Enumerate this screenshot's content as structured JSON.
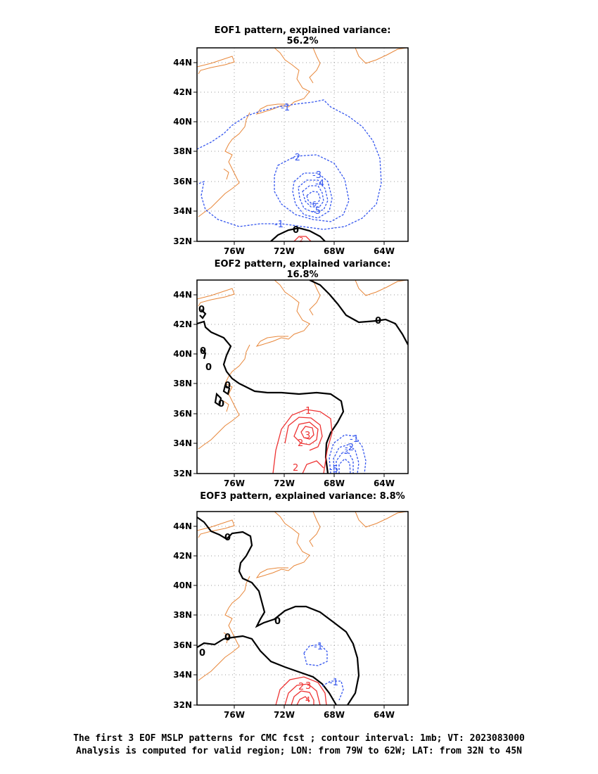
{
  "panels": [
    {
      "title": "EOF1 pattern, explained variance: 56.2%"
    },
    {
      "title": "EOF2 pattern, explained variance: 16.8%"
    },
    {
      "title": "EOF3 pattern, explained variance: 8.8%"
    }
  ],
  "axes": {
    "lat_ticks": [
      "32N",
      "34N",
      "36N",
      "38N",
      "40N",
      "42N",
      "44N"
    ],
    "lon_ticks": [
      "76W",
      "72W",
      "68W",
      "64W"
    ]
  },
  "colors": {
    "coast": "#e8873a",
    "negative": "#3355ee",
    "positive": "#ee3333",
    "zero": "#000000",
    "grid": "#999999"
  },
  "contour_labels": {
    "eof1": [
      "-1",
      "-1",
      "-2",
      "-3",
      "-4",
      "-5",
      "-6",
      "0",
      "2"
    ],
    "eof2": [
      "0",
      "0",
      "0",
      "0",
      "0",
      "0",
      "1",
      "3",
      "2",
      "2",
      "-1",
      "-2",
      "-3",
      "-5"
    ],
    "eof3": [
      "0",
      "0",
      "0",
      "0",
      "-1",
      "-1",
      "2",
      "3",
      "4"
    ]
  },
  "caption": {
    "line1": "The first 3 EOF MSLP patterns for CMC fcst ; contour interval: 1mb; VT: 2023083000",
    "line2": "Analysis is computed for valid region; LON: from 79W to 62W; LAT: from 32N to 45N"
  }
}
